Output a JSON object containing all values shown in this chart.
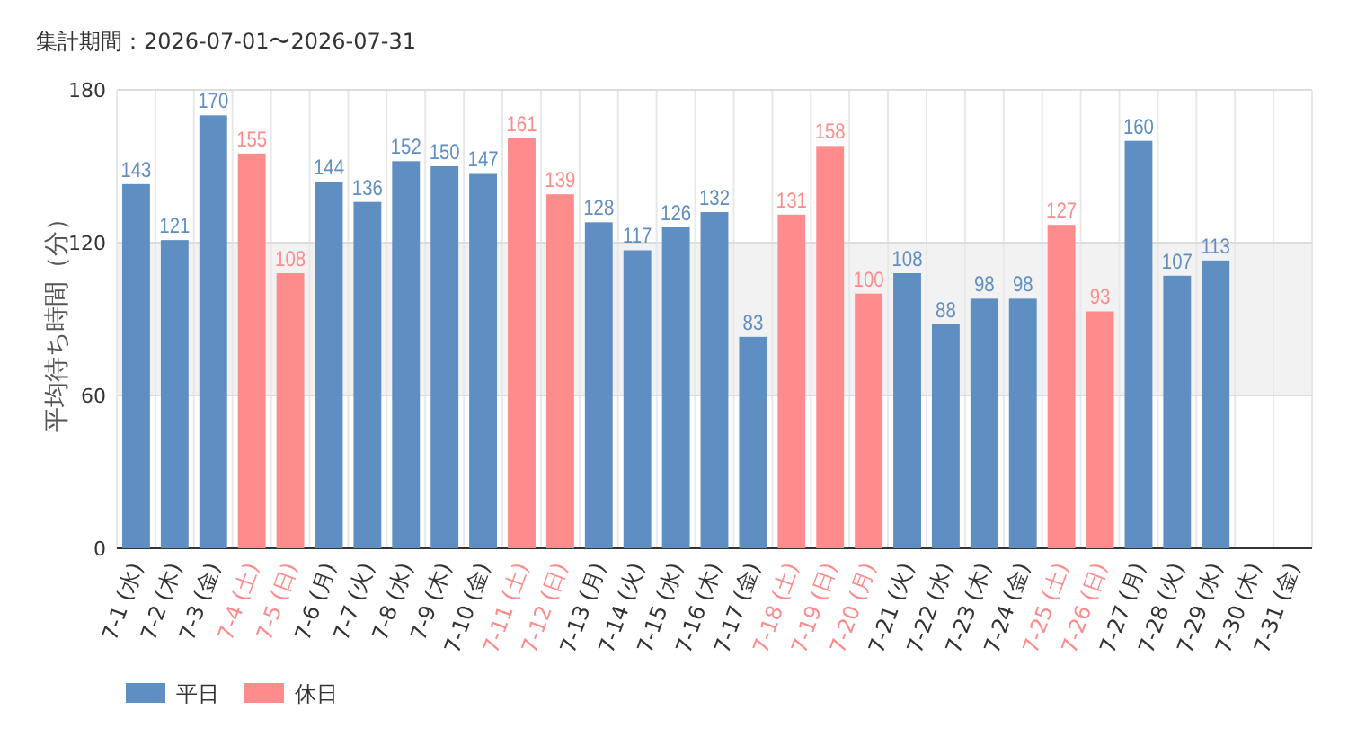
{
  "chart_data": {
    "type": "bar",
    "title": "集計期間：2026-07-01〜2026-07-31",
    "ylabel": "平均待ち時間（分）",
    "categories": [
      "7-1 (水)",
      "7-2 (木)",
      "7-3 (金)",
      "7-4 (土)",
      "7-5 (日)",
      "7-6 (月)",
      "7-7 (火)",
      "7-8 (水)",
      "7-9 (木)",
      "7-10 (金)",
      "7-11 (土)",
      "7-12 (日)",
      "7-13 (月)",
      "7-14 (火)",
      "7-15 (水)",
      "7-16 (木)",
      "7-17 (金)",
      "7-18 (土)",
      "7-19 (日)",
      "7-20 (月)",
      "7-21 (火)",
      "7-22 (水)",
      "7-23 (木)",
      "7-24 (金)",
      "7-25 (土)",
      "7-26 (日)",
      "7-27 (月)",
      "7-28 (火)",
      "7-29 (水)",
      "7-30 (木)",
      "7-31 (金)"
    ],
    "series": [
      {
        "name": "平日",
        "color": "#5f8ec3",
        "values": [
          143,
          121,
          170,
          null,
          null,
          144,
          136,
          152,
          150,
          147,
          null,
          null,
          128,
          117,
          126,
          132,
          83,
          null,
          null,
          null,
          108,
          88,
          98,
          98,
          null,
          null,
          160,
          107,
          113,
          null,
          null
        ]
      },
      {
        "name": "休日",
        "color": "#ff8c8c",
        "values": [
          null,
          null,
          null,
          155,
          108,
          null,
          null,
          null,
          null,
          null,
          161,
          139,
          null,
          null,
          null,
          null,
          null,
          131,
          158,
          100,
          null,
          null,
          null,
          null,
          127,
          93,
          null,
          null,
          null,
          null,
          null
        ]
      }
    ],
    "ylim": [
      0,
      180
    ],
    "yticks": [
      0,
      60,
      120,
      180
    ],
    "grid": true,
    "bands": [
      {
        "axis": "y",
        "from": 60,
        "to": 120,
        "color": "#f2f2f2"
      }
    ],
    "data_labels": true,
    "legend": "bottom left"
  }
}
